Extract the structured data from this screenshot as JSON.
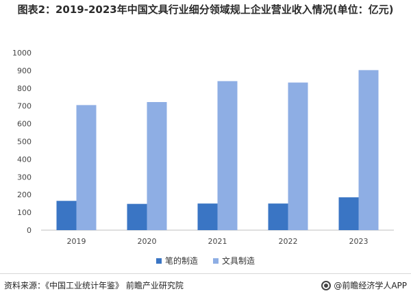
{
  "title": {
    "text": "图表2：2019-2023年中国文具行业细分领域规上企业营业收入情况(单位：亿元)"
  },
  "chart_data": {
    "type": "bar",
    "categories": [
      "2019",
      "2020",
      "2021",
      "2022",
      "2023"
    ],
    "series": [
      {
        "name": "笔的制造",
        "values": [
          165,
          148,
          150,
          150,
          185
        ],
        "color": "#3a75c4"
      },
      {
        "name": "文具制造",
        "values": [
          705,
          722,
          840,
          832,
          902
        ],
        "color": "#8eaee4"
      }
    ],
    "ylim": [
      0,
      1000
    ],
    "yticks": [
      0,
      100,
      200,
      300,
      400,
      500,
      600,
      700,
      800,
      900,
      1000
    ],
    "xlabel": "",
    "ylabel": "",
    "grid": false,
    "legend": "bottom"
  },
  "footer": {
    "source": "资料来源：《中国工业统计年鉴》 前瞻产业研究院",
    "brand": "@前瞻经济学人APP"
  }
}
